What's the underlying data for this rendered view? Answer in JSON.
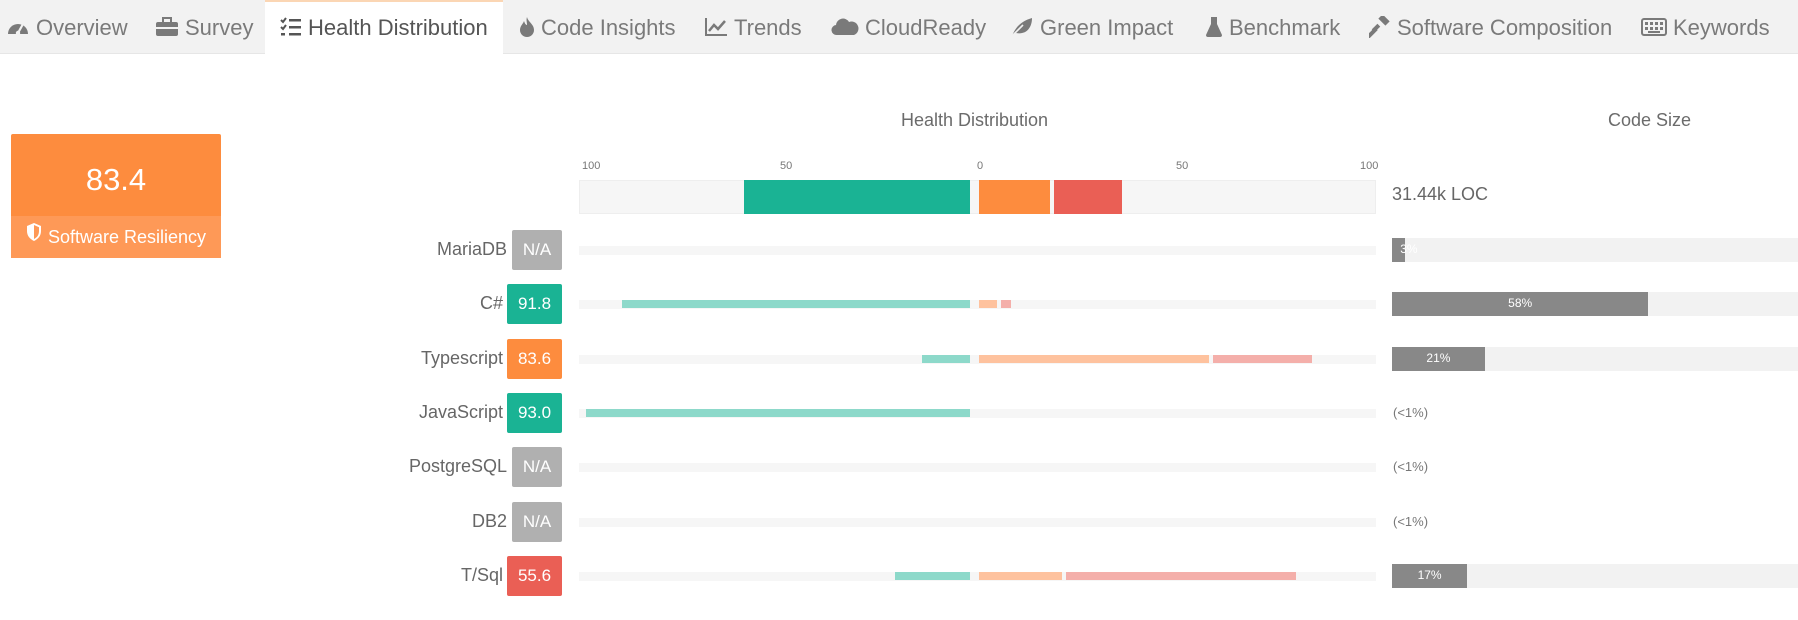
{
  "tabs": [
    {
      "label": "Overview",
      "icon": "dashboard-icon",
      "active": false
    },
    {
      "label": "Survey",
      "icon": "briefcase-icon",
      "active": false
    },
    {
      "label": "Health Distribution",
      "icon": "tasks-list-icon",
      "active": true
    },
    {
      "label": "Code Insights",
      "icon": "flame-icon",
      "active": false
    },
    {
      "label": "Trends",
      "icon": "line-chart-icon",
      "active": false
    },
    {
      "label": "CloudReady",
      "icon": "cloud-icon",
      "active": false
    },
    {
      "label": "Green Impact",
      "icon": "leaf-icon",
      "active": false
    },
    {
      "label": "Benchmark",
      "icon": "flask-icon",
      "active": false
    },
    {
      "label": "Software Composition",
      "icon": "hammer-icon",
      "active": false
    },
    {
      "label": "Keywords",
      "icon": "keyboard-icon",
      "active": false
    }
  ],
  "score": {
    "value": "83.4",
    "label": "Software Resiliency",
    "color": "#fd8c3e"
  },
  "headers": {
    "health": "Health Distribution",
    "size": "Code Size"
  },
  "axis_ticks": [
    "100",
    "50",
    "0",
    "50",
    "100"
  ],
  "total": {
    "loc": "31.44k LOC",
    "health_bars": {
      "green": 57,
      "orange": 18,
      "red": 17
    }
  },
  "colors": {
    "green": "#1ab394",
    "orange": "#fd8c3e",
    "red": "#ea5f55",
    "na": "#b0b0b0",
    "green_light": "#8dd9ca",
    "orange_light": "#fec29e",
    "red_light": "#f4afaa",
    "size_fill": "#888888"
  },
  "rows": [
    {
      "name": "MariaDB",
      "score": "N/A",
      "status": "na",
      "green": 0,
      "orange": 0,
      "red": 0,
      "size_pct": 3,
      "size_label": "3%"
    },
    {
      "name": "C#",
      "score": "91.8",
      "status": "green",
      "green": 88,
      "orange": 4.5,
      "red": 2.5,
      "size_pct": 58,
      "size_label": "58%"
    },
    {
      "name": "Typescript",
      "score": "83.6",
      "status": "orange",
      "green": 12,
      "orange": 58,
      "red": 25,
      "size_pct": 21,
      "size_label": "21%"
    },
    {
      "name": "JavaScript",
      "score": "93.0",
      "status": "green",
      "green": 97,
      "orange": 0,
      "red": 0,
      "size_pct": 0,
      "size_label": "(<1%)"
    },
    {
      "name": "PostgreSQL",
      "score": "N/A",
      "status": "na",
      "green": 0,
      "orange": 0,
      "red": 0,
      "size_pct": 0,
      "size_label": "(<1%)"
    },
    {
      "name": "DB2",
      "score": "N/A",
      "status": "na",
      "green": 0,
      "orange": 0,
      "red": 0,
      "size_pct": 0,
      "size_label": "(<1%)"
    },
    {
      "name": "T/Sql",
      "score": "55.6",
      "status": "red",
      "green": 19,
      "orange": 21,
      "red": 58,
      "size_pct": 17,
      "size_label": "17%"
    }
  ]
}
